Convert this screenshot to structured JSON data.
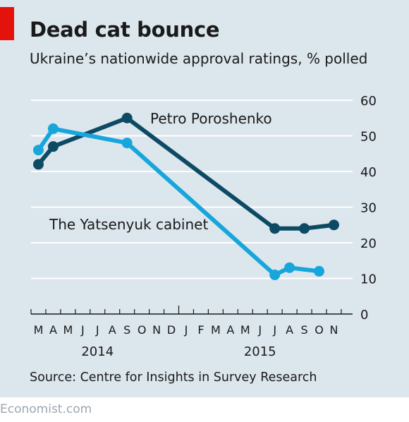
{
  "header": {
    "title": "Dead cat bounce",
    "subtitle": "Ukraine’s nationwide approval ratings, % polled"
  },
  "footer": {
    "source": "Source: Centre for Insights in Survey Research",
    "brand": "Economist.com"
  },
  "colors": {
    "background": "#dce6ed",
    "accent": "#e3120b",
    "poroshenko": "#0d4a63",
    "yatsenyuk": "#17a6dc"
  },
  "chart_data": {
    "type": "line",
    "ylim": [
      0,
      60
    ],
    "yticks": [
      0,
      10,
      20,
      30,
      40,
      50,
      60
    ],
    "month_labels": [
      "M",
      "A",
      "M",
      "J",
      "J",
      "A",
      "S",
      "O",
      "N",
      "D",
      "J",
      "F",
      "M",
      "A",
      "M",
      "J",
      "J",
      "A",
      "S",
      "O",
      "N"
    ],
    "year_labels": [
      {
        "label": "2014",
        "month_index": 4.5
      },
      {
        "label": "2015",
        "month_index": 15.5
      }
    ],
    "grid": true,
    "series": [
      {
        "name": "Petro Poroshenko",
        "color": "#0d4a63",
        "points": [
          {
            "month_index": 0.5,
            "value": 42
          },
          {
            "month_index": 1.5,
            "value": 47
          },
          {
            "month_index": 6.5,
            "value": 55
          },
          {
            "month_index": 16.5,
            "value": 24
          },
          {
            "month_index": 18.5,
            "value": 24
          },
          {
            "month_index": 20.5,
            "value": 25
          }
        ]
      },
      {
        "name": "The Yatsenyuk cabinet",
        "color": "#17a6dc",
        "points": [
          {
            "month_index": 0.5,
            "value": 46
          },
          {
            "month_index": 1.5,
            "value": 52
          },
          {
            "month_index": 6.5,
            "value": 48
          },
          {
            "month_index": 16.5,
            "value": 11
          },
          {
            "month_index": 17.5,
            "value": 13
          },
          {
            "month_index": 19.5,
            "value": 12
          }
        ]
      }
    ]
  }
}
